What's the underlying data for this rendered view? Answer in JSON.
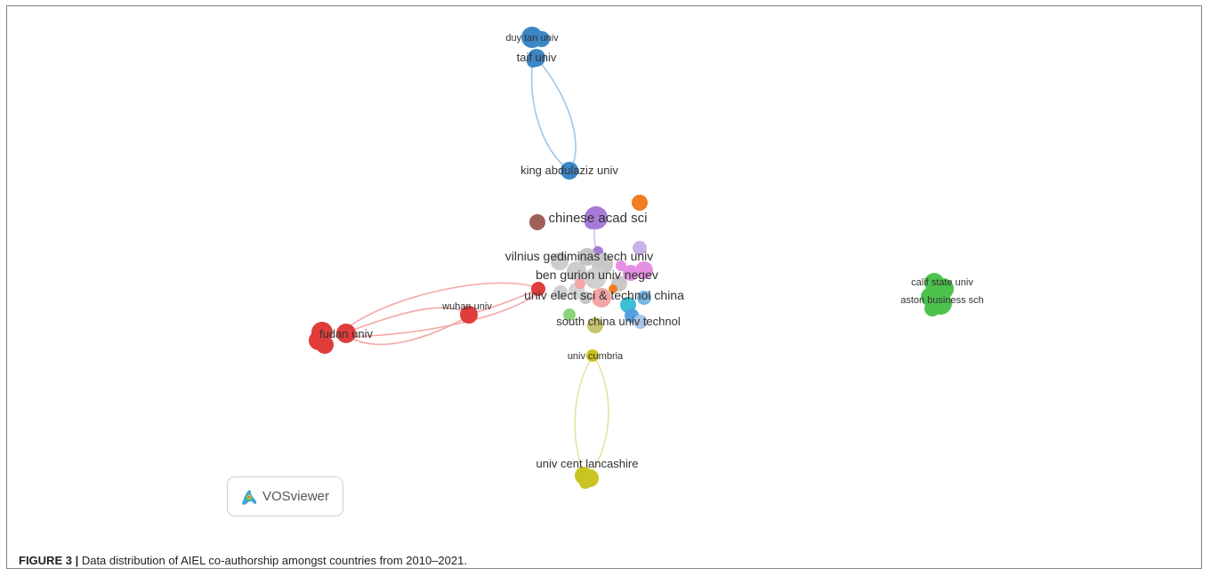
{
  "caption": {
    "label": "FIGURE 3 |",
    "text": "Data distribution of AIEL co-authorship amongst countries from 2010–2021."
  },
  "badge": {
    "text": "VOSviewer",
    "icon": "vosviewer-logo-icon"
  },
  "colors": {
    "blue": "#3d86c6",
    "red": "#e13c3c",
    "purple": "#a77ad8",
    "orange": "#ee7d23",
    "brown": "#a0605a",
    "gray": "#c8c8c8",
    "pink": "#e58fe3",
    "salmon": "#f3a5a6",
    "cyan": "#3fbfd5",
    "lightblue": "#a9c4ea",
    "lightgreen": "#8ad47c",
    "yellow": "#c9c421",
    "green": "#4cc24c",
    "lavender": "#c9b2e6"
  },
  "network": {
    "labels": [
      "duy tan univ",
      "taif univ",
      "king abdulaziz univ",
      "chinese acad sci",
      "vilnius gediminas tech univ",
      "ben gurion univ negev",
      "univ elect sci & technol china",
      "wuhan univ",
      "fudan univ",
      "south china univ technol",
      "univ cumbria",
      "univ cent lancashire",
      "calif state univ",
      "aston business sch"
    ]
  }
}
